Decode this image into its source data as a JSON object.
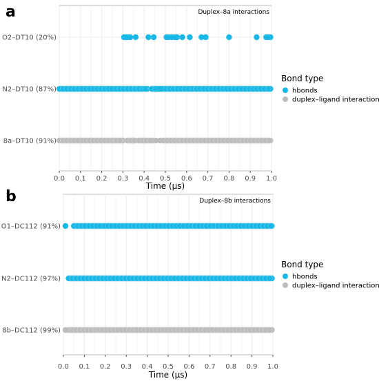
{
  "chart_data": [
    {
      "type": "scatter",
      "panel_letter": "a",
      "title": "Duplex–8a interactions",
      "xlabel": "Time (µs)",
      "xlim": [
        0,
        1.0
      ],
      "xticks": [
        "0.0",
        "0.1",
        "0.2",
        "0.3",
        "0.4",
        "0.5",
        "0.6",
        "0.7",
        "0.8",
        "0.9",
        "1.0"
      ],
      "rows": [
        {
          "label": "O2–DT10 (20%)",
          "series": "hbonds",
          "points": [
            0.305,
            0.315,
            0.325,
            0.335,
            0.36,
            0.42,
            0.445,
            0.505,
            0.515,
            0.53,
            0.545,
            0.555,
            0.58,
            0.615,
            0.67,
            0.69,
            0.8,
            0.93,
            0.975,
            0.985,
            0.995
          ]
        },
        {
          "label": "N2–DT10 (87%)",
          "series": "hbonds",
          "segments": [
            [
              0.0,
              0.395
            ],
            [
              0.405,
              0.415
            ],
            [
              0.435,
              0.465
            ],
            [
              0.485,
              0.995
            ]
          ],
          "points": [
            0.475
          ]
        },
        {
          "label": "8a–DT10 (91%)",
          "series": "duplex–ligand interactions",
          "segments": [
            [
              0.0,
              0.3
            ],
            [
              0.32,
              0.36
            ],
            [
              0.375,
              0.44
            ],
            [
              0.49,
              0.995
            ]
          ],
          "points": [
            0.455,
            0.475
          ]
        }
      ],
      "legend": {
        "title": "Bond type",
        "entries": [
          {
            "name": "hbonds",
            "color": "#1ab8e6"
          },
          {
            "name": "duplex–ligand interactions",
            "color": "#bdbdbd"
          }
        ]
      }
    },
    {
      "type": "scatter",
      "panel_letter": "b",
      "title": "Duplex–8b interactions",
      "xlabel": "Time (µs)",
      "xlim": [
        0,
        1.0
      ],
      "xticks": [
        "0.0",
        "0.1",
        "0.2",
        "0.3",
        "0.4",
        "0.5",
        "0.6",
        "0.7",
        "0.8",
        "0.9",
        "1.0"
      ],
      "rows": [
        {
          "label": "O1–DC112 (91%)",
          "series": "hbonds",
          "segments": [
            [
              0.05,
              0.995
            ]
          ],
          "points": [
            0.01
          ]
        },
        {
          "label": "N2–DC112 (97%)",
          "series": "hbonds",
          "segments": [
            [
              0.025,
              0.995
            ]
          ],
          "points": []
        },
        {
          "label": "8b–DC112 (99%)",
          "series": "duplex–ligand interactions",
          "segments": [
            [
              0.025,
              0.995
            ]
          ],
          "points": [
            0.01
          ]
        }
      ],
      "legend": {
        "title": "Bond type",
        "entries": [
          {
            "name": "hbonds",
            "color": "#1ab8e6"
          },
          {
            "name": "duplex–ligand interactions",
            "color": "#bdbdbd"
          }
        ]
      }
    }
  ]
}
